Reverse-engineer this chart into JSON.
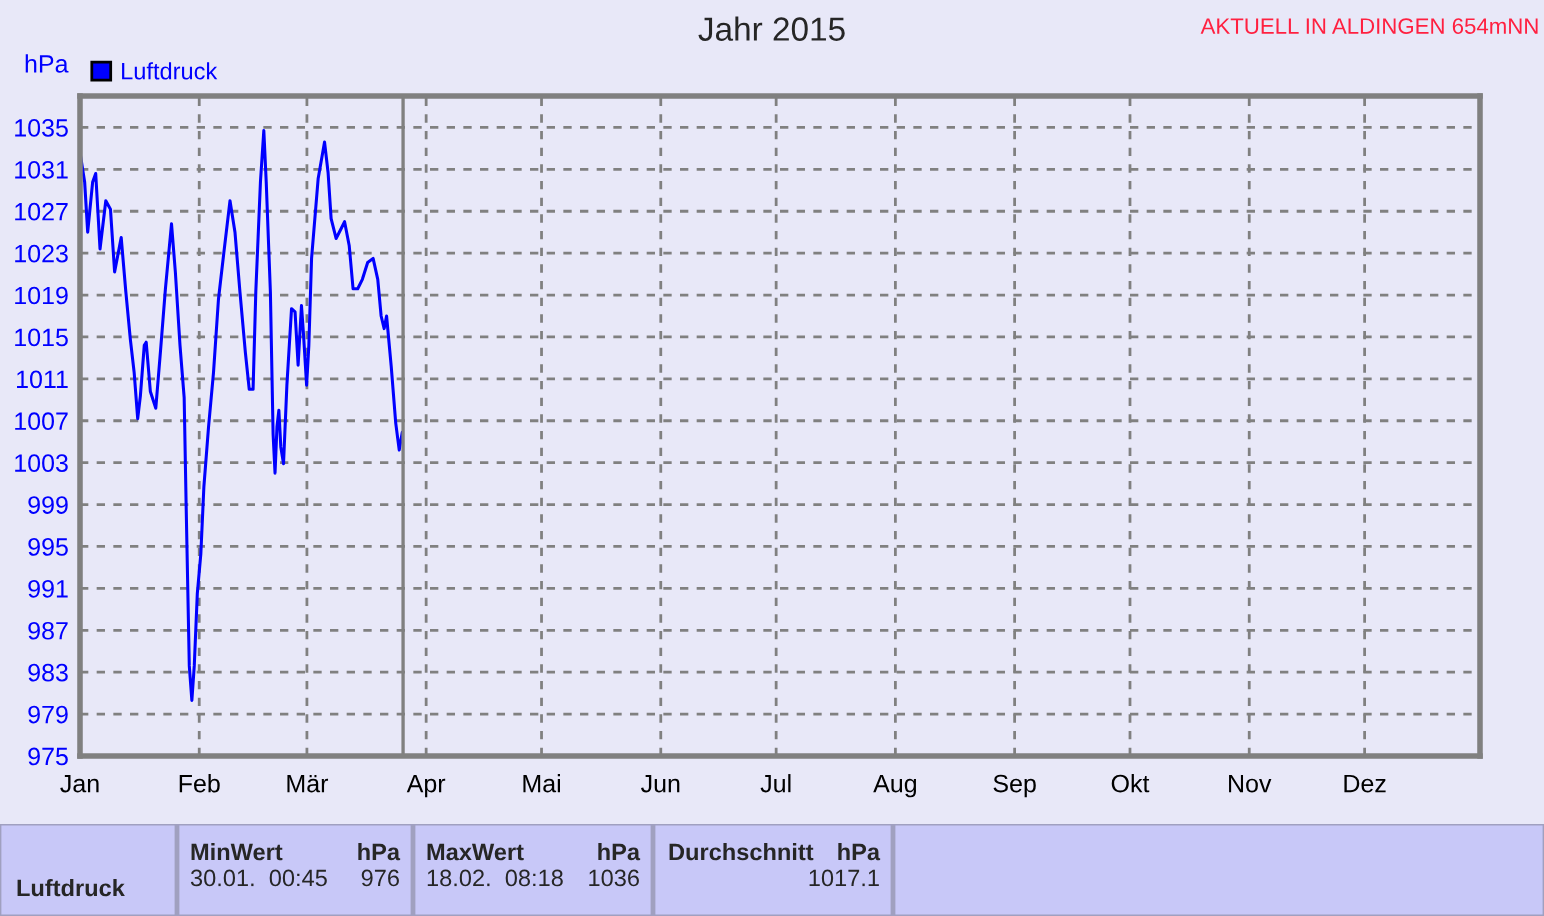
{
  "chart_data": {
    "type": "line",
    "title": "Jahr 2015",
    "subtitle": "AKTUELL IN ALDINGEN 654mNN",
    "ylabel": "hPa",
    "x": [
      "2015-01-01T00:00",
      "2015-01-02T05:00",
      "2015-01-03T00:00",
      "2015-01-04T07:00",
      "2015-01-05T02:00",
      "2015-01-06T05:00",
      "2015-01-07T17:00",
      "2015-01-08T22:00",
      "2015-01-10T00:00",
      "2015-01-11T17:00",
      "2015-01-12T22:00",
      "2015-01-14T02:00",
      "2015-01-15T02:00",
      "2015-01-16T00:00",
      "2015-01-16T17:00",
      "2015-01-17T17:00",
      "2015-01-18T05:00",
      "2015-01-19T07:00",
      "2015-01-20T17:00",
      "2015-01-21T22:00",
      "2015-01-23T05:00",
      "2015-01-24T19:00",
      "2015-01-25T19:00",
      "2015-01-27T00:00",
      "2015-01-28T02:00",
      "2015-01-28T14:00",
      "2015-01-29T10:00",
      "2015-01-30T02:00",
      "2015-01-30T17:00",
      "2015-01-31T12:00",
      "2015-02-01T10:00",
      "2015-02-02T05:00",
      "2015-02-03T10:00",
      "2015-02-04T17:00",
      "2015-02-06T00:00",
      "2015-02-07T10:00",
      "2015-02-09T00:00",
      "2015-02-10T07:00",
      "2015-02-11T14:00",
      "2015-02-13T00:00",
      "2015-02-14T00:00",
      "2015-02-15T00:00",
      "2015-02-15T17:00",
      "2015-02-16T22:00",
      "2015-02-17T19:00",
      "2015-02-18T10:00",
      "2015-02-19T12:00",
      "2015-02-20T05:00",
      "2015-02-20T17:00",
      "2015-02-21T05:00",
      "2015-02-21T17:00",
      "2015-02-22T05:00",
      "2015-02-22T22:00",
      "2015-02-23T19:00",
      "2015-02-25T00:00",
      "2015-02-25T22:00",
      "2015-02-26T17:00",
      "2015-02-27T14:00",
      "2015-02-28T02:00",
      "2015-02-28T22:00",
      "2015-03-01T12:00",
      "2015-03-02T05:00",
      "2015-03-03T22:00",
      "2015-03-05T14:00",
      "2015-03-06T12:00",
      "2015-03-07T07:00",
      "2015-03-08T14:00",
      "2015-03-09T10:00",
      "2015-03-10T19:00",
      "2015-03-12T00:00",
      "2015-03-13T00:00",
      "2015-03-14T05:00",
      "2015-03-15T10:00",
      "2015-03-16T19:00",
      "2015-03-18T05:00",
      "2015-03-19T10:00",
      "2015-03-20T07:00",
      "2015-03-21T02:00",
      "2015-03-21T17:00",
      "2015-03-22T22:00",
      "2015-03-24T02:00",
      "2015-03-25T00:00",
      "2015-03-25T19:00"
    ],
    "series": [
      {
        "name": "Luftdruck",
        "color": "#0000ff",
        "values": [
          1032.6,
          1029.8,
          1025,
          1029.8,
          1030.6,
          1023.4,
          1028,
          1027.2,
          1021.2,
          1024.5,
          1019.3,
          1014.8,
          1011.6,
          1007.2,
          1009.4,
          1014.2,
          1014.5,
          1009.8,
          1008.2,
          1013.6,
          1019.6,
          1025.8,
          1021.2,
          1014.2,
          1009.2,
          999.2,
          983.6,
          980.3,
          983.6,
          990.5,
          994.3,
          1000.7,
          1006.4,
          1011.6,
          1018.6,
          1023.1,
          1028,
          1025,
          1019.3,
          1013.5,
          1010,
          1010,
          1019.3,
          1029.8,
          1034.7,
          1029.8,
          1019.3,
          1005.7,
          1002,
          1006.4,
          1008,
          1004.5,
          1002.9,
          1010.4,
          1017.7,
          1017.4,
          1012.3,
          1018,
          1015.4,
          1010.4,
          1014.2,
          1022.5,
          1030.1,
          1033.6,
          1030.7,
          1026.3,
          1024.4,
          1025,
          1026,
          1023.7,
          1019.6,
          1019.6,
          1020.5,
          1022.1,
          1022.5,
          1020.5,
          1017,
          1015.8,
          1017,
          1012.2,
          1006.8,
          1004.2,
          1005.9
        ]
      }
    ],
    "xlim": [
      "2015-01-01",
      "2015-12-31"
    ],
    "xticks": [
      {
        "value": "2015-01-01",
        "label": "Jan"
      },
      {
        "value": "2015-02-01",
        "label": "Feb"
      },
      {
        "value": "2015-03-01",
        "label": "Mär"
      },
      {
        "value": "2015-04-01",
        "label": "Apr"
      },
      {
        "value": "2015-05-01",
        "label": "Mai"
      },
      {
        "value": "2015-06-01",
        "label": "Jun"
      },
      {
        "value": "2015-07-01",
        "label": "Jul"
      },
      {
        "value": "2015-08-01",
        "label": "Aug"
      },
      {
        "value": "2015-09-01",
        "label": "Sep"
      },
      {
        "value": "2015-10-01",
        "label": "Okt"
      },
      {
        "value": "2015-11-01",
        "label": "Nov"
      },
      {
        "value": "2015-12-01",
        "label": "Dez"
      }
    ],
    "ylim": [
      975,
      1038
    ],
    "yticks": [
      975,
      979,
      983,
      987,
      991,
      995,
      999,
      1003,
      1007,
      1011,
      1015,
      1019,
      1023,
      1027,
      1031,
      1035
    ],
    "ref_lines": [
      {
        "axis": "x",
        "value": "2015-03-26",
        "label": null,
        "color": "#808080"
      }
    ],
    "grid": true,
    "legend": "top left",
    "line_style": "solid",
    "marker": "none",
    "annotations": [
      "MinWert",
      "hPa",
      "MaxWert",
      "hPa",
      "Durchschnitt",
      "hPa",
      "Luftdruck",
      "30.01.  00:45",
      "976",
      "18.02.  08:18",
      "1036",
      "1017.1"
    ]
  }
}
